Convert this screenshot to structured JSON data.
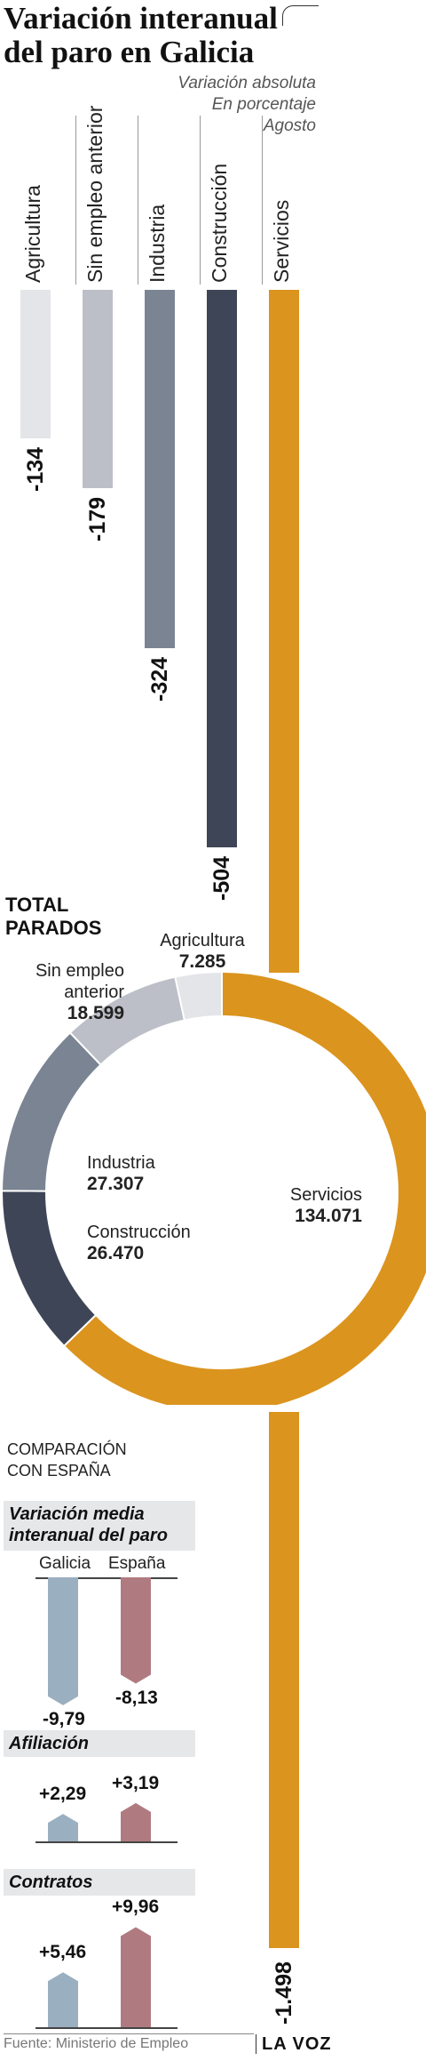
{
  "header": {
    "title_line1": "Variación interanual",
    "title_line2": "del paro en Galicia",
    "subtitle": [
      "Variación absoluta",
      "En porcentaje",
      "Agosto"
    ]
  },
  "chart_data": [
    {
      "type": "bar",
      "orientation": "vertical-downward",
      "categories": [
        "Agricultura",
        "Sin empleo anterior",
        "Industria",
        "Construcción",
        "Servicios"
      ],
      "values": [
        -134,
        -179,
        -324,
        -504,
        -1498
      ],
      "labels": [
        "-134",
        "-179",
        "-324",
        "-504",
        "-1.498"
      ],
      "colors": [
        "#e4e5e8",
        "#bcbfc7",
        "#7a8493",
        "#3e4556",
        "#db941e"
      ]
    },
    {
      "type": "pie",
      "title": [
        "TOTAL",
        "PARADOS"
      ],
      "slices": [
        {
          "name": "Servicios",
          "value": 134071,
          "label": "134.071",
          "color": "#db941e"
        },
        {
          "name": "Construcción",
          "value": 26470,
          "label": "26.470",
          "color": "#3e4556"
        },
        {
          "name": "Industria",
          "value": 27307,
          "label": "27.307",
          "color": "#7a8493"
        },
        {
          "name": "Sin empleo anterior",
          "value": 18599,
          "label": "18.599",
          "color": "#bcbfc7"
        },
        {
          "name": "Agricultura",
          "value": 7285,
          "label": "7.285",
          "color": "#e4e5e8"
        }
      ]
    },
    {
      "type": "bar",
      "section_title": [
        "COMPARACIÓN",
        "CON ESPAÑA"
      ],
      "categories": [
        "Galicia",
        "España"
      ],
      "colors": [
        "#9aafc0",
        "#b07b80"
      ],
      "panels": [
        {
          "title": [
            "Variación media",
            "interanual del paro"
          ],
          "values": [
            -9.79,
            -8.13
          ],
          "labels": [
            "-9,79",
            "-8,13"
          ]
        },
        {
          "title": [
            "Afiliación"
          ],
          "values": [
            2.29,
            3.19
          ],
          "labels": [
            "+2,29",
            "+3,19"
          ]
        },
        {
          "title": [
            "Contratos"
          ],
          "values": [
            5.46,
            9.96
          ],
          "labels": [
            "+5,46",
            "+9,96"
          ]
        }
      ]
    }
  ],
  "footer": {
    "source": "Fuente: Ministerio de Empleo",
    "brand": "LA VOZ"
  }
}
